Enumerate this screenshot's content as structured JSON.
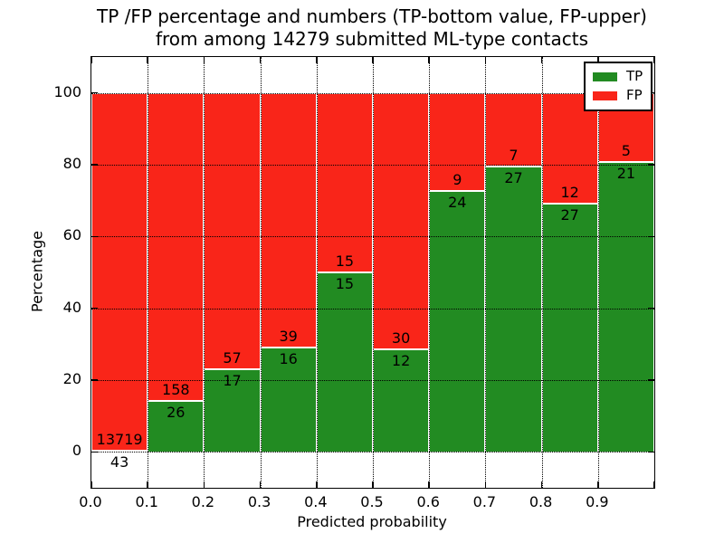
{
  "title": {
    "line1": "TP /FP percentage and numbers (TP-bottom value, FP-upper)",
    "line2": "from among 14279 submitted ML-type contacts"
  },
  "chart_data": {
    "type": "bar",
    "stacked": true,
    "normalized_to_percent": true,
    "title": "TP /FP percentage and numbers (TP-bottom value, FP-upper) from among 14279 submitted ML-type contacts",
    "xlabel": "Predicted probability",
    "ylabel": "Percentage",
    "total_contacts": 14279,
    "bin_starts": [
      0.0,
      0.1,
      0.2,
      0.3,
      0.4,
      0.5,
      0.6,
      0.7,
      0.8,
      0.9
    ],
    "bin_width": 0.1,
    "series": [
      {
        "name": "TP",
        "color": "#228B22",
        "counts": [
          43,
          26,
          17,
          16,
          15,
          12,
          24,
          27,
          27,
          21
        ]
      },
      {
        "name": "FP",
        "color": "#f92519",
        "counts": [
          13719,
          158,
          57,
          39,
          15,
          30,
          9,
          7,
          12,
          5
        ]
      }
    ],
    "tp_percent_approx": [
      0.3,
      14.1,
      23.0,
      29.1,
      50.0,
      28.6,
      72.7,
      79.4,
      69.2,
      80.8
    ],
    "xtick_labels": [
      "0.0",
      "0.1",
      "0.2",
      "0.3",
      "0.4",
      "0.5",
      "0.6",
      "0.7",
      "0.8",
      "0.9"
    ],
    "ytick_values": [
      0,
      20,
      40,
      60,
      80,
      100
    ],
    "xlim": [
      0.0,
      1.0
    ],
    "ylim": [
      -10,
      110
    ],
    "grid": "dotted black, major ticks, drawn over bars",
    "legend": {
      "position": "upper right",
      "entries": [
        {
          "label": "TP",
          "color": "#228B22"
        },
        {
          "label": "FP",
          "color": "#f92519"
        }
      ]
    }
  }
}
